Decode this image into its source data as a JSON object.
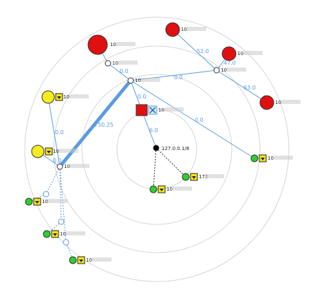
{
  "colors": {
    "ring": "#d4d4d4",
    "edge": "#5b9be0",
    "edge_label": "#5b9be0",
    "red": "#e01010",
    "yellow": "#f4ec1c",
    "green": "#2ed02e",
    "hub": "#ffffff",
    "root": "#000000",
    "text": "#222222"
  },
  "diagram": {
    "root_label": "127.0.0.1/8",
    "labels": {
      "n_top_red": "10",
      "n_r1": "10",
      "n_r2": "10",
      "n_r3": "10",
      "n_r4": "10",
      "h_top": "10",
      "h_mid": "10",
      "h_right": "10",
      "h_left": "10",
      "red_square": "10",
      "y1": "10",
      "y2": "10",
      "g_right": "10",
      "g_mid1": "10",
      "g_mid2": "172",
      "g_l1": "10",
      "g_l2": "10",
      "g_l3": "10"
    },
    "edge_labels": {
      "e_htop_hmid": "0.0",
      "e_hmid_hright": "0.0",
      "e_hright_r1": "52.0",
      "e_hright_r3": "47.0",
      "e_hright_r4": "63.0",
      "e_hmid_sq": "0.0",
      "e_hmid_gr": "0.0",
      "e_hmid_hleft": "750.25",
      "e_y1_hleft": "0.0",
      "e_y2_hleft": "0.0",
      "e_sq_root": "6.0"
    }
  }
}
